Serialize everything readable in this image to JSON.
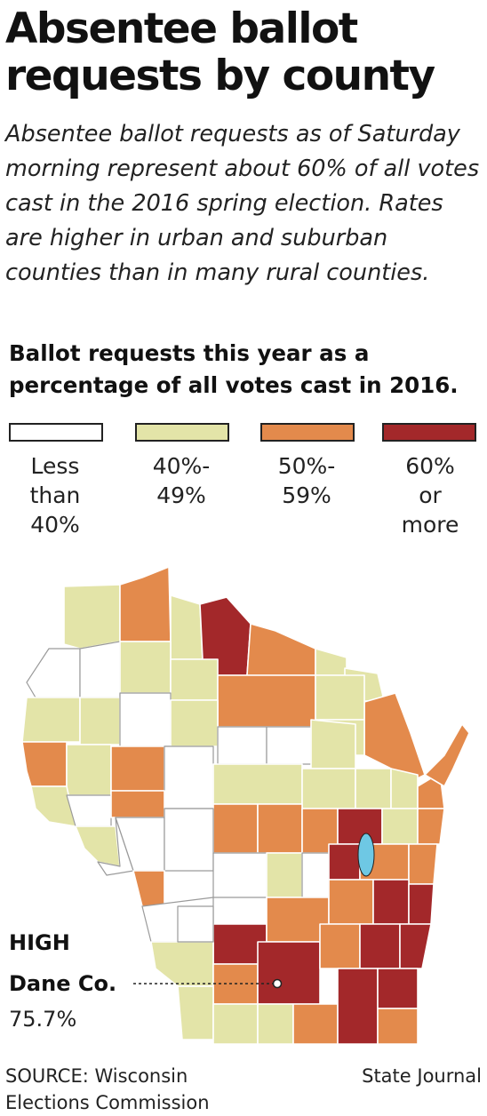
{
  "header": {
    "title": "Absentee ballot requests by county",
    "subtitle": "Absentee ballot requests as of Saturday morning represent about 60% of all votes cast in the 2016 spring election. Rates are higher in urban and suburban counties than in many rural counties."
  },
  "legend": {
    "title": "Ballot requests this year as a percentage of all votes cast in 2016.",
    "items": [
      {
        "label": "Less\nthan\n40%",
        "color": "#ffffff"
      },
      {
        "label": "40%-\n49%",
        "color": "#e3e4a8"
      },
      {
        "label": "50%-\n59%",
        "color": "#e38a4c"
      },
      {
        "label": "60%\nor\nmore",
        "color": "#a3282a"
      }
    ]
  },
  "callout": {
    "label": "HIGH",
    "county": "Dane Co.",
    "value": "75.7%"
  },
  "map": {
    "lake_color": "#6ec8e4"
  },
  "footer": {
    "source": "SOURCE: Wisconsin\nElections Commission",
    "credit": "State Journal"
  }
}
